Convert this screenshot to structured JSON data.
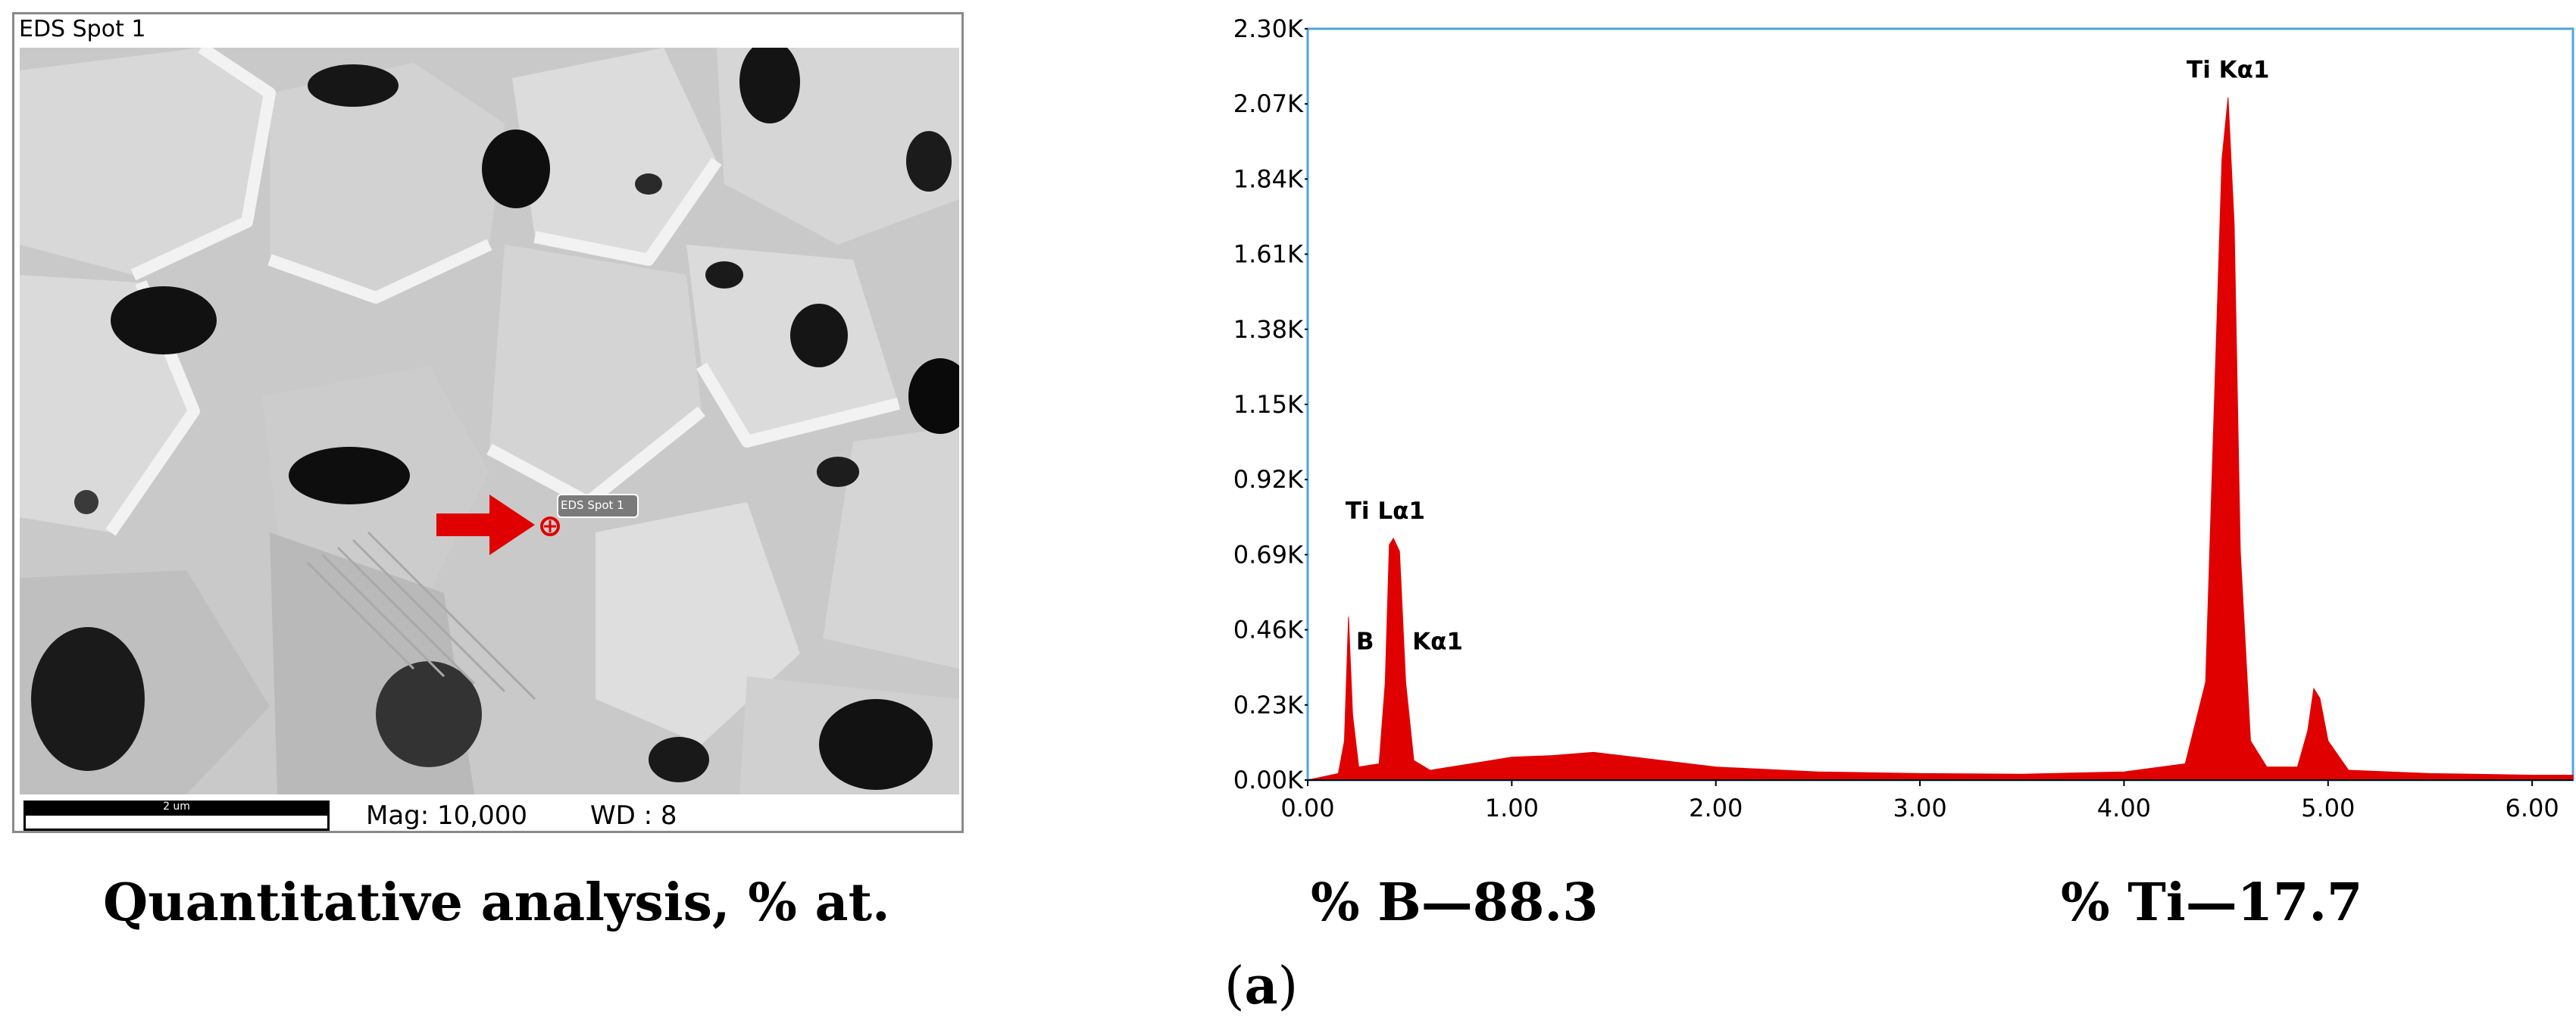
{
  "sem": {
    "title": "EDS Spot 1",
    "spot_tag": "EDS Spot 1",
    "scalebar_label": "2 um",
    "mag": "Mag: 10,000",
    "wd": "WD : 8"
  },
  "chart_data": {
    "type": "area",
    "title": "",
    "xlabel": "",
    "ylabel": "",
    "xlim": [
      0.0,
      6.2
    ],
    "ylim": [
      0,
      2300
    ],
    "x_ticks": [
      "0.00",
      "1.00",
      "2.00",
      "3.00",
      "4.00",
      "5.00",
      "6.00"
    ],
    "y_ticks": [
      "0.00K",
      "0.23K",
      "0.46K",
      "0.69K",
      "0.92K",
      "1.15K",
      "1.38K",
      "1.61K",
      "1.84K",
      "2.07K",
      "2.30K"
    ],
    "series": [
      {
        "x": [
          0.0,
          0.15,
          0.18,
          0.2,
          0.22,
          0.25,
          0.35,
          0.38,
          0.4,
          0.42,
          0.45,
          0.48,
          0.52,
          0.6,
          0.8,
          1.0,
          1.2,
          1.4,
          1.6,
          1.8,
          2.0,
          2.5,
          3.0,
          3.5,
          4.0,
          4.3,
          4.4,
          4.45,
          4.48,
          4.51,
          4.54,
          4.57,
          4.62,
          4.7,
          4.85,
          4.9,
          4.93,
          4.96,
          5.0,
          5.1,
          5.5,
          6.0,
          6.2
        ],
        "y": [
          0,
          20,
          120,
          500,
          200,
          40,
          50,
          300,
          720,
          740,
          700,
          300,
          60,
          30,
          50,
          70,
          75,
          85,
          70,
          55,
          40,
          25,
          20,
          18,
          25,
          50,
          300,
          1300,
          1900,
          2090,
          1700,
          700,
          120,
          40,
          40,
          150,
          280,
          250,
          120,
          30,
          20,
          15,
          15
        ]
      }
    ],
    "peak_labels": [
      {
        "text": "B",
        "x": 0.2,
        "y": 400
      },
      {
        "text": "Kα1",
        "x": 0.52,
        "y": 400
      },
      {
        "text": "Ti Lα1",
        "x": 0.38,
        "y": 800
      },
      {
        "text": "Ti Kα1",
        "x": 4.51,
        "y": 2150
      }
    ],
    "color": "#e00000"
  },
  "captions": {
    "quant": "Quantitative analysis, % at.",
    "b": "% B—88.3",
    "ti": "% Ti—17.7",
    "panel_letter": "a",
    "panel_open": "(",
    "panel_close": ")"
  }
}
